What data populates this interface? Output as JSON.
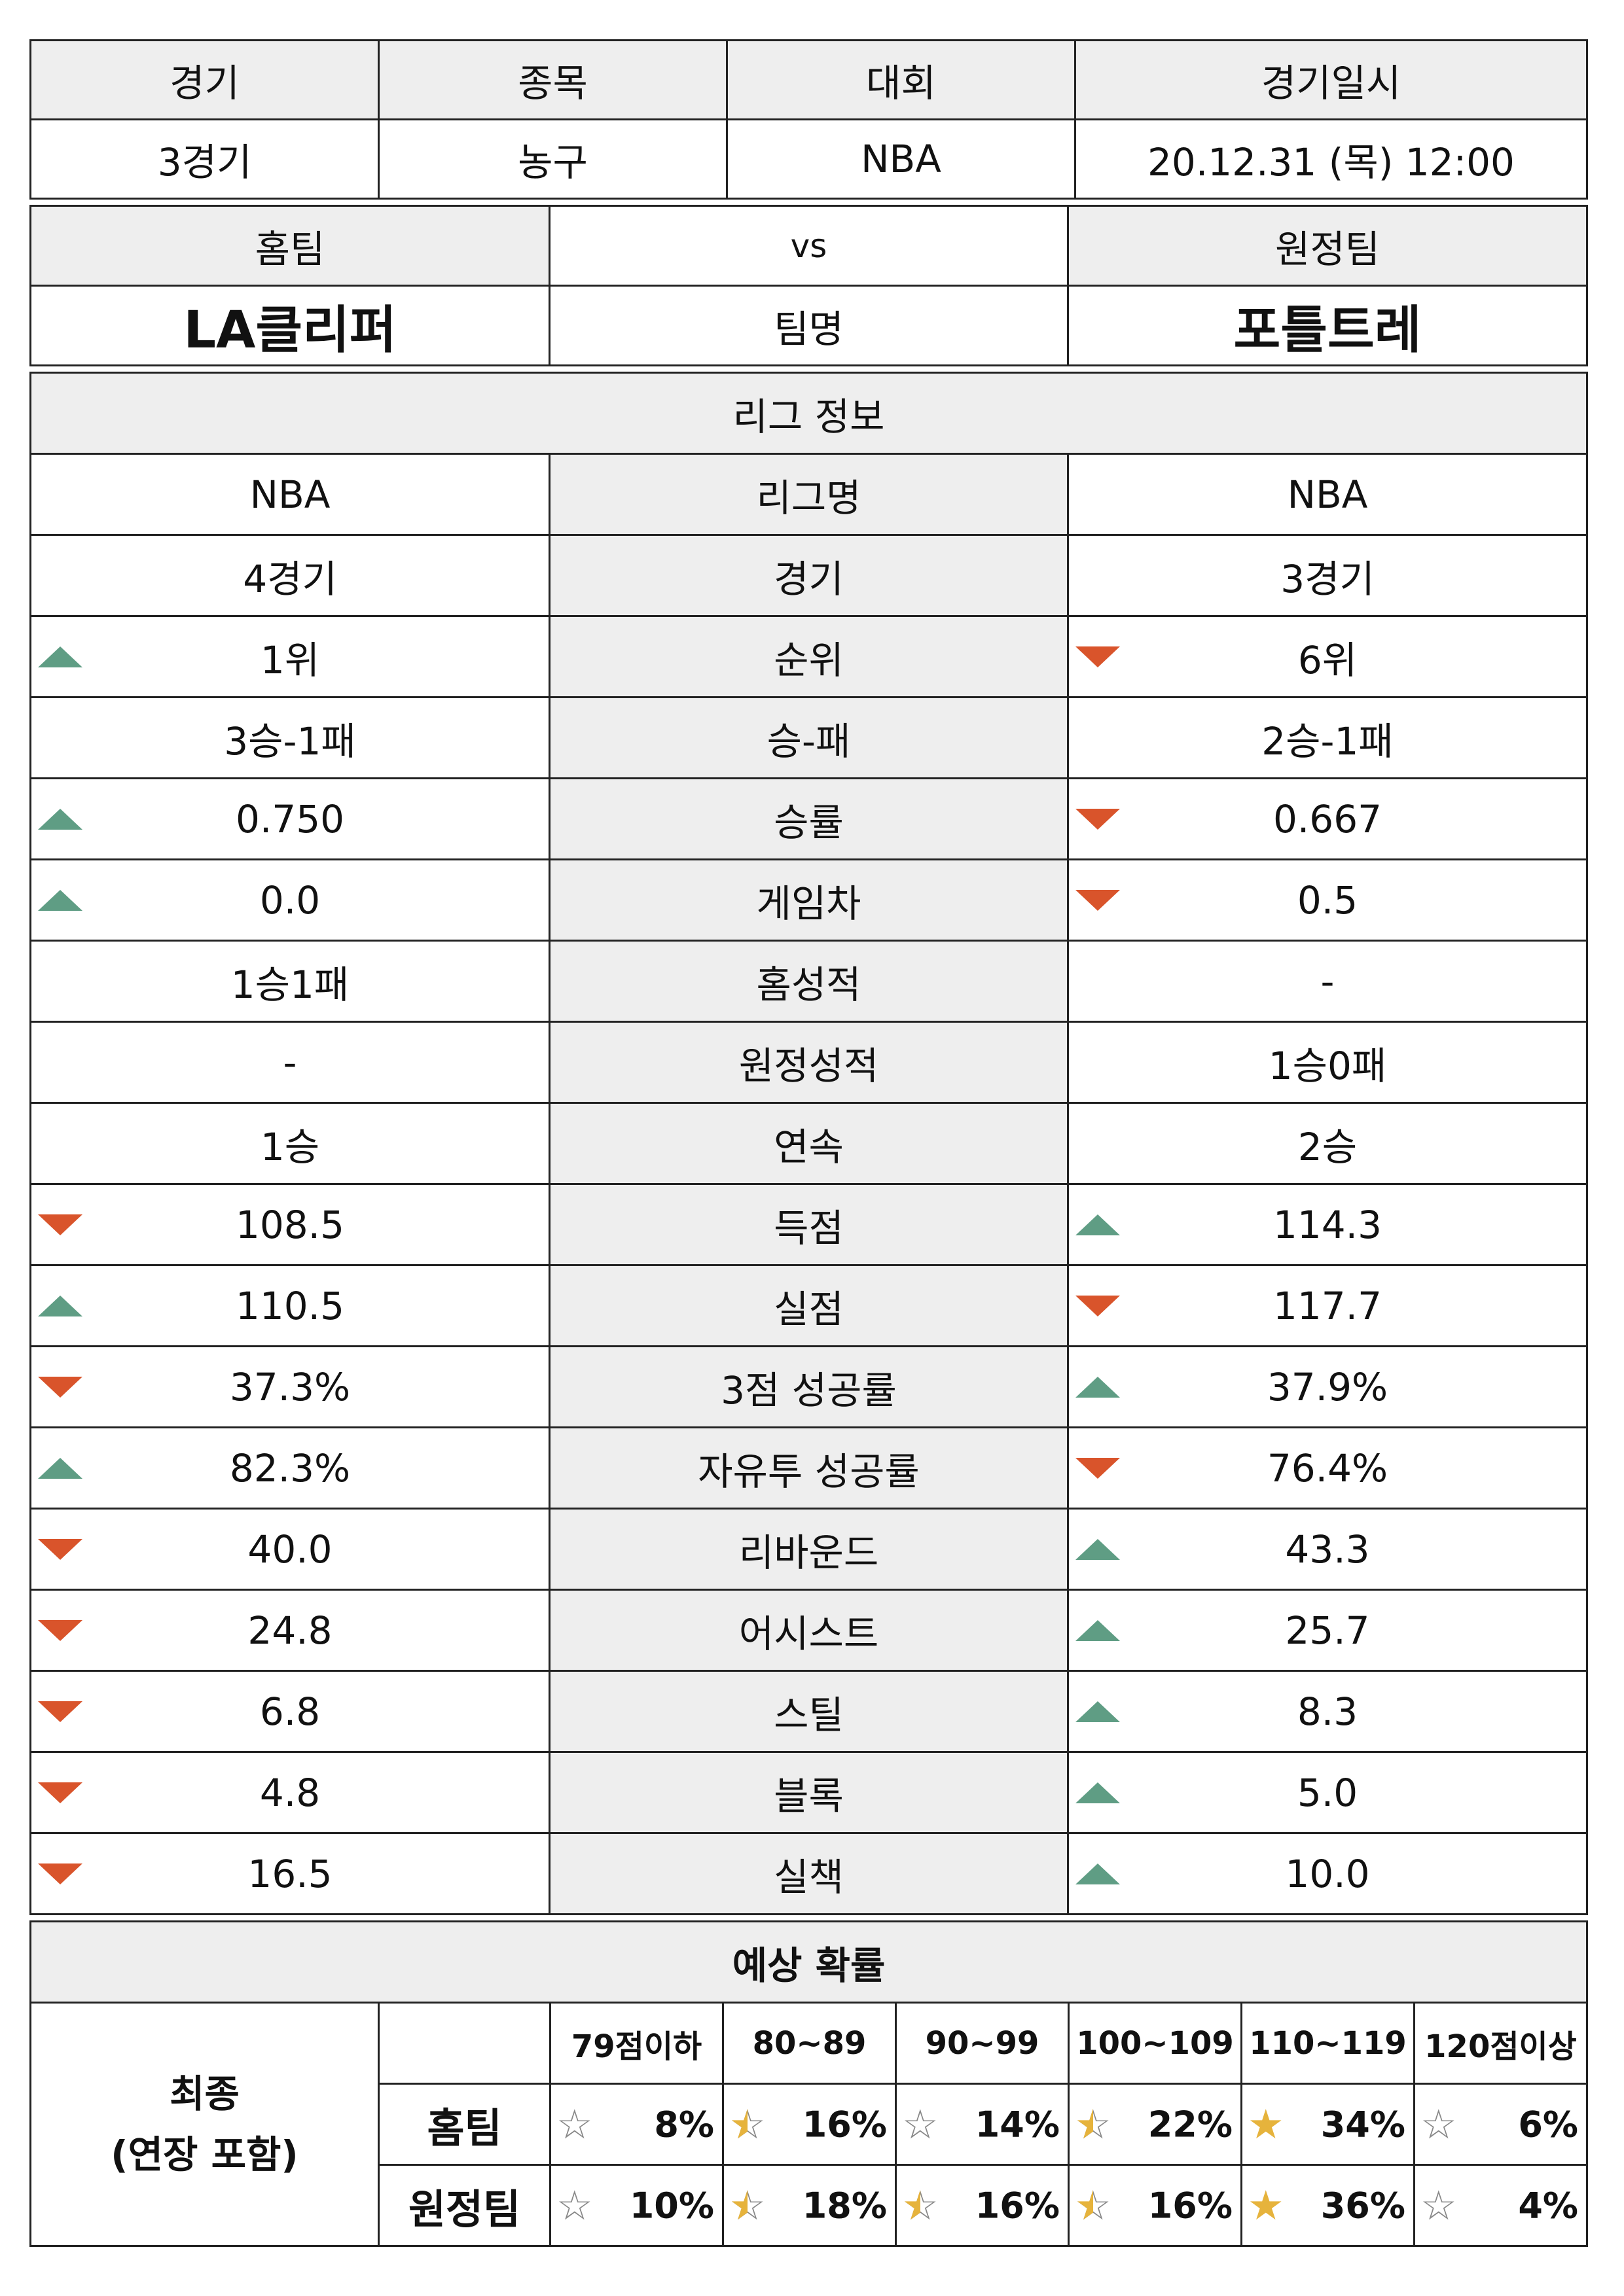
{
  "match": {
    "headers": [
      "경기",
      "종목",
      "대회",
      "경기일시"
    ],
    "values": [
      "3경기",
      "농구",
      "NBA",
      "20.12.31 (목) 12:00"
    ]
  },
  "teams": {
    "home_label": "홈팀",
    "vs_label": "vs",
    "away_label": "원정팀",
    "home_name": "LA클리퍼",
    "name_label": "팀명",
    "away_name": "포틀트레"
  },
  "league_info": {
    "title": "리그 정보",
    "rows": [
      {
        "label": "리그명",
        "home": "NBA",
        "away": "NBA",
        "home_ind": "",
        "away_ind": ""
      },
      {
        "label": "경기",
        "home": "4경기",
        "away": "3경기",
        "home_ind": "",
        "away_ind": ""
      },
      {
        "label": "순위",
        "home": "1위",
        "away": "6위",
        "home_ind": "up",
        "away_ind": "down"
      },
      {
        "label": "승-패",
        "home": "3승-1패",
        "away": "2승-1패",
        "home_ind": "",
        "away_ind": ""
      },
      {
        "label": "승률",
        "home": "0.750",
        "away": "0.667",
        "home_ind": "up",
        "away_ind": "down"
      },
      {
        "label": "게임차",
        "home": "0.0",
        "away": "0.5",
        "home_ind": "up",
        "away_ind": "down"
      },
      {
        "label": "홈성적",
        "home": "1승1패",
        "away": "-",
        "home_ind": "",
        "away_ind": ""
      },
      {
        "label": "원정성적",
        "home": "-",
        "away": "1승0패",
        "home_ind": "",
        "away_ind": ""
      },
      {
        "label": "연속",
        "home": "1승",
        "away": "2승",
        "home_ind": "",
        "away_ind": ""
      },
      {
        "label": "득점",
        "home": "108.5",
        "away": "114.3",
        "home_ind": "down",
        "away_ind": "up"
      },
      {
        "label": "실점",
        "home": "110.5",
        "away": "117.7",
        "home_ind": "up",
        "away_ind": "down"
      },
      {
        "label": "3점 성공률",
        "home": "37.3%",
        "away": "37.9%",
        "home_ind": "down",
        "away_ind": "up"
      },
      {
        "label": "자유투 성공률",
        "home": "82.3%",
        "away": "76.4%",
        "home_ind": "up",
        "away_ind": "down"
      },
      {
        "label": "리바운드",
        "home": "40.0",
        "away": "43.3",
        "home_ind": "down",
        "away_ind": "up"
      },
      {
        "label": "어시스트",
        "home": "24.8",
        "away": "25.7",
        "home_ind": "down",
        "away_ind": "up"
      },
      {
        "label": "스틸",
        "home": "6.8",
        "away": "8.3",
        "home_ind": "down",
        "away_ind": "up"
      },
      {
        "label": "블록",
        "home": "4.8",
        "away": "5.0",
        "home_ind": "down",
        "away_ind": "up"
      },
      {
        "label": "실책",
        "home": "16.5",
        "away": "10.0",
        "home_ind": "down",
        "away_ind": "up"
      }
    ]
  },
  "prediction": {
    "title": "예상 확률",
    "row_label_line1": "최종",
    "row_label_line2": "(연장 포함)",
    "ranges": [
      "79점이하",
      "80~89",
      "90~99",
      "100~109",
      "110~119",
      "120점이상"
    ],
    "rows": [
      {
        "label": "홈팀",
        "cells": [
          {
            "pct": "8%",
            "star": "empty"
          },
          {
            "pct": "16%",
            "star": "half"
          },
          {
            "pct": "14%",
            "star": "empty"
          },
          {
            "pct": "22%",
            "star": "half"
          },
          {
            "pct": "34%",
            "star": "full"
          },
          {
            "pct": "6%",
            "star": "empty"
          }
        ]
      },
      {
        "label": "원정팀",
        "cells": [
          {
            "pct": "10%",
            "star": "empty"
          },
          {
            "pct": "18%",
            "star": "half"
          },
          {
            "pct": "16%",
            "star": "half"
          },
          {
            "pct": "16%",
            "star": "half"
          },
          {
            "pct": "36%",
            "star": "full"
          },
          {
            "pct": "4%",
            "star": "empty"
          }
        ]
      }
    ]
  },
  "colors": {
    "up": "#5f9d84",
    "down": "#d9542b",
    "header_bg": "#eeeeee",
    "star_gold": "#e6b33c"
  }
}
